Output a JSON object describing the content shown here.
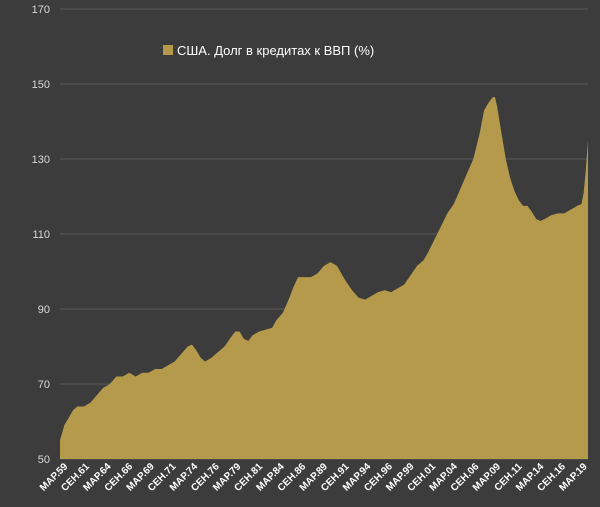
{
  "chart_data": {
    "type": "area",
    "series": [
      {
        "name": "США. Долг в кредитах к ВВП (%)",
        "color": "#b59a4c",
        "points": [
          [
            1959.0,
            55
          ],
          [
            1959.5,
            59
          ],
          [
            1960.0,
            61
          ],
          [
            1960.5,
            63
          ],
          [
            1961.0,
            64
          ],
          [
            1961.75,
            64
          ],
          [
            1962.5,
            65
          ],
          [
            1963.25,
            67
          ],
          [
            1964.0,
            69
          ],
          [
            1964.75,
            70
          ],
          [
            1965.5,
            72
          ],
          [
            1966.25,
            72
          ],
          [
            1967.0,
            73
          ],
          [
            1967.75,
            72
          ],
          [
            1968.5,
            73
          ],
          [
            1969.25,
            73
          ],
          [
            1970.0,
            74
          ],
          [
            1970.75,
            74
          ],
          [
            1971.5,
            75
          ],
          [
            1972.25,
            76
          ],
          [
            1973.0,
            78
          ],
          [
            1973.75,
            80
          ],
          [
            1974.25,
            80.5
          ],
          [
            1974.75,
            79
          ],
          [
            1975.25,
            77
          ],
          [
            1975.75,
            76
          ],
          [
            1976.5,
            77
          ],
          [
            1977.25,
            78.5
          ],
          [
            1978.0,
            80
          ],
          [
            1978.75,
            82.5
          ],
          [
            1979.25,
            84
          ],
          [
            1979.75,
            84
          ],
          [
            1980.25,
            82
          ],
          [
            1980.75,
            81.5
          ],
          [
            1981.25,
            83
          ],
          [
            1982.0,
            84
          ],
          [
            1982.75,
            84.5
          ],
          [
            1983.5,
            85
          ],
          [
            1984.0,
            87
          ],
          [
            1984.75,
            89
          ],
          [
            1985.5,
            93
          ],
          [
            1986.0,
            96
          ],
          [
            1986.5,
            98.5
          ],
          [
            1987.25,
            98.5
          ],
          [
            1988.0,
            98.5
          ],
          [
            1988.75,
            99.5
          ],
          [
            1989.5,
            101.5
          ],
          [
            1990.25,
            102.5
          ],
          [
            1991.0,
            101.5
          ],
          [
            1991.5,
            99.5
          ],
          [
            1992.0,
            97.5
          ],
          [
            1992.75,
            95
          ],
          [
            1993.5,
            93
          ],
          [
            1994.25,
            92.5
          ],
          [
            1995.0,
            93.5
          ],
          [
            1995.75,
            94.5
          ],
          [
            1996.5,
            95
          ],
          [
            1997.25,
            94.5
          ],
          [
            1998.0,
            95.5
          ],
          [
            1998.75,
            96.5
          ],
          [
            1999.5,
            99
          ],
          [
            2000.25,
            101.5
          ],
          [
            2001.0,
            103
          ],
          [
            2001.5,
            105
          ],
          [
            2002.25,
            108.5
          ],
          [
            2003.0,
            112
          ],
          [
            2003.75,
            115.5
          ],
          [
            2004.5,
            118
          ],
          [
            2005.25,
            122
          ],
          [
            2006.0,
            126
          ],
          [
            2006.75,
            130
          ],
          [
            2007.5,
            137
          ],
          [
            2008.0,
            143
          ],
          [
            2008.5,
            145
          ],
          [
            2009.0,
            146.5
          ],
          [
            2009.25,
            146.5
          ],
          [
            2009.5,
            144
          ],
          [
            2010.0,
            137
          ],
          [
            2010.5,
            130
          ],
          [
            2011.0,
            125
          ],
          [
            2011.5,
            121.5
          ],
          [
            2012.0,
            119
          ],
          [
            2012.5,
            117.5
          ],
          [
            2013.0,
            117.5
          ],
          [
            2013.5,
            116
          ],
          [
            2014.0,
            114
          ],
          [
            2014.5,
            113.5
          ],
          [
            2015.0,
            114
          ],
          [
            2015.75,
            115
          ],
          [
            2016.5,
            115.5
          ],
          [
            2017.25,
            115.5
          ],
          [
            2018.0,
            116.5
          ],
          [
            2018.75,
            117.5
          ],
          [
            2019.25,
            118
          ],
          [
            2019.5,
            121
          ],
          [
            2019.75,
            127
          ],
          [
            2020.0,
            135
          ]
        ]
      }
    ],
    "ylim": [
      50,
      170
    ],
    "yticks": [
      50,
      70,
      90,
      110,
      130,
      150,
      170
    ],
    "xlim": [
      1959.0,
      2020.0
    ],
    "xticks": [
      {
        "label": "МАР.59",
        "x": 1959.25
      },
      {
        "label": "СЕН.61",
        "x": 1961.75
      },
      {
        "label": "МАР.64",
        "x": 1964.25
      },
      {
        "label": "СЕН.66",
        "x": 1966.75
      },
      {
        "label": "МАР.69",
        "x": 1969.25
      },
      {
        "label": "СЕН.71",
        "x": 1971.75
      },
      {
        "label": "МАР.74",
        "x": 1974.25
      },
      {
        "label": "СЕН.76",
        "x": 1976.75
      },
      {
        "label": "МАР.79",
        "x": 1979.25
      },
      {
        "label": "СЕН.81",
        "x": 1981.75
      },
      {
        "label": "МАР.84",
        "x": 1984.25
      },
      {
        "label": "СЕН.86",
        "x": 1986.75
      },
      {
        "label": "МАР.89",
        "x": 1989.25
      },
      {
        "label": "СЕН.91",
        "x": 1991.75
      },
      {
        "label": "МАР.94",
        "x": 1994.25
      },
      {
        "label": "СЕН.96",
        "x": 1996.75
      },
      {
        "label": "МАР.99",
        "x": 1999.25
      },
      {
        "label": "СЕН.01",
        "x": 2001.75
      },
      {
        "label": "МАР.04",
        "x": 2004.25
      },
      {
        "label": "СЕН.06",
        "x": 2006.75
      },
      {
        "label": "МАР.09",
        "x": 2009.25
      },
      {
        "label": "СЕН.11",
        "x": 2011.75
      },
      {
        "label": "МАР.14",
        "x": 2014.25
      },
      {
        "label": "СЕН.16",
        "x": 2016.75
      },
      {
        "label": "МАР.19",
        "x": 2019.25
      }
    ],
    "grid": true,
    "legend": "top-left"
  }
}
